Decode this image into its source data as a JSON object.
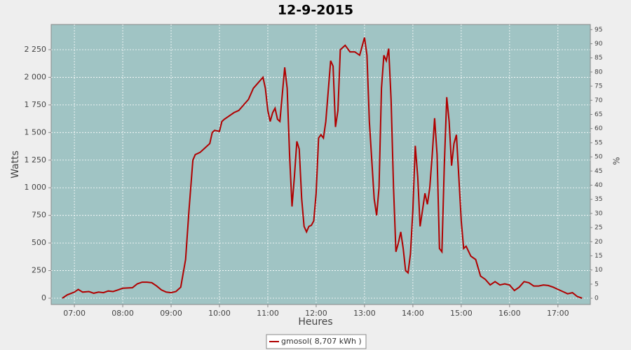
{
  "chart_data": {
    "type": "line",
    "title": "12-9-2015",
    "xlabel": "Heures",
    "ylabel": "Watts",
    "y2label": "%",
    "x": [
      6.75,
      6.85,
      7.0,
      7.08,
      7.17,
      7.3,
      7.4,
      7.5,
      7.6,
      7.7,
      7.8,
      7.9,
      8.0,
      8.2,
      8.3,
      8.4,
      8.5,
      8.6,
      8.7,
      8.8,
      8.9,
      9.0,
      9.1,
      9.2,
      9.3,
      9.37,
      9.45,
      9.5,
      9.6,
      9.7,
      9.8,
      9.85,
      9.9,
      10.0,
      10.05,
      10.1,
      10.2,
      10.3,
      10.4,
      10.5,
      10.6,
      10.7,
      10.8,
      10.9,
      10.95,
      11.0,
      11.05,
      11.1,
      11.15,
      11.2,
      11.25,
      11.3,
      11.35,
      11.4,
      11.45,
      11.5,
      11.55,
      11.6,
      11.65,
      11.7,
      11.75,
      11.8,
      11.85,
      11.9,
      11.95,
      12.0,
      12.05,
      12.1,
      12.15,
      12.2,
      12.3,
      12.35,
      12.4,
      12.45,
      12.5,
      12.6,
      12.7,
      12.8,
      12.9,
      13.0,
      13.05,
      13.1,
      13.2,
      13.25,
      13.3,
      13.35,
      13.4,
      13.45,
      13.5,
      13.55,
      13.6,
      13.65,
      13.7,
      13.75,
      13.8,
      13.85,
      13.9,
      13.95,
      14.0,
      14.05,
      14.1,
      14.15,
      14.2,
      14.25,
      14.3,
      14.35,
      14.4,
      14.45,
      14.5,
      14.55,
      14.6,
      14.65,
      14.7,
      14.75,
      14.8,
      14.85,
      14.9,
      14.95,
      15.0,
      15.05,
      15.1,
      15.2,
      15.3,
      15.4,
      15.5,
      15.6,
      15.7,
      15.8,
      15.9,
      16.0,
      16.1,
      16.2,
      16.3,
      16.4,
      16.5,
      16.6,
      16.7,
      16.8,
      16.9,
      17.0,
      17.1,
      17.2,
      17.3,
      17.4,
      17.5
    ],
    "series": [
      {
        "name": "gmosol( 8,707 kWh )",
        "color": "#b00000",
        "values": [
          0,
          30,
          55,
          80,
          55,
          60,
          45,
          55,
          50,
          65,
          60,
          75,
          90,
          95,
          130,
          145,
          145,
          140,
          110,
          75,
          55,
          50,
          60,
          100,
          350,
          800,
          1250,
          1300,
          1320,
          1360,
          1400,
          1500,
          1520,
          1510,
          1600,
          1620,
          1650,
          1680,
          1700,
          1750,
          1800,
          1900,
          1950,
          2000,
          1900,
          1700,
          1600,
          1680,
          1720,
          1620,
          1600,
          1850,
          2090,
          1900,
          1300,
          830,
          1100,
          1420,
          1350,
          900,
          650,
          600,
          650,
          660,
          700,
          950,
          1450,
          1480,
          1450,
          1600,
          2150,
          2100,
          1550,
          1700,
          2250,
          2290,
          2230,
          2230,
          2200,
          2360,
          2200,
          1600,
          900,
          750,
          1000,
          1900,
          2200,
          2150,
          2260,
          1800,
          1000,
          420,
          500,
          600,
          450,
          250,
          230,
          400,
          800,
          1380,
          1100,
          650,
          800,
          950,
          850,
          1000,
          1300,
          1630,
          1300,
          450,
          420,
          1200,
          1820,
          1600,
          1200,
          1400,
          1480,
          1100,
          700,
          450,
          470,
          380,
          350,
          200,
          170,
          120,
          150,
          120,
          130,
          120,
          70,
          100,
          150,
          140,
          110,
          110,
          120,
          115,
          100,
          80,
          60,
          40,
          50,
          15,
          0
        ]
      }
    ],
    "xlim": [
      6.52,
      17.67
    ],
    "xticks": [
      {
        "value": 7,
        "label": "07:00"
      },
      {
        "value": 8,
        "label": "08:00"
      },
      {
        "value": 9,
        "label": "09:00"
      },
      {
        "value": 10,
        "label": "10:00"
      },
      {
        "value": 11,
        "label": "11:00"
      },
      {
        "value": 12,
        "label": "12:00"
      },
      {
        "value": 13,
        "label": "13:00"
      },
      {
        "value": 14,
        "label": "14:00"
      },
      {
        "value": 15,
        "label": "15:00"
      },
      {
        "value": 16,
        "label": "16:00"
      },
      {
        "value": 17,
        "label": "17:00"
      }
    ],
    "ylim": [
      -57,
      2478
    ],
    "yticks": [
      0,
      250,
      500,
      750,
      {
        "value": 1000,
        "label": "1 000"
      },
      {
        "value": 1250,
        "label": "1 250"
      },
      {
        "value": 1500,
        "label": "1 500"
      },
      {
        "value": 1750,
        "label": "1 750"
      },
      {
        "value": 2000,
        "label": "2 000"
      },
      {
        "value": 2250,
        "label": "2 250"
      }
    ],
    "y2lim": [
      -2.2,
      96.8
    ],
    "y2ticks": [
      0,
      5,
      10,
      15,
      20,
      25,
      30,
      35,
      40,
      45,
      50,
      55,
      60,
      65,
      70,
      75,
      80,
      85,
      90,
      95
    ],
    "grid": true,
    "background": "#a0c4c4"
  }
}
